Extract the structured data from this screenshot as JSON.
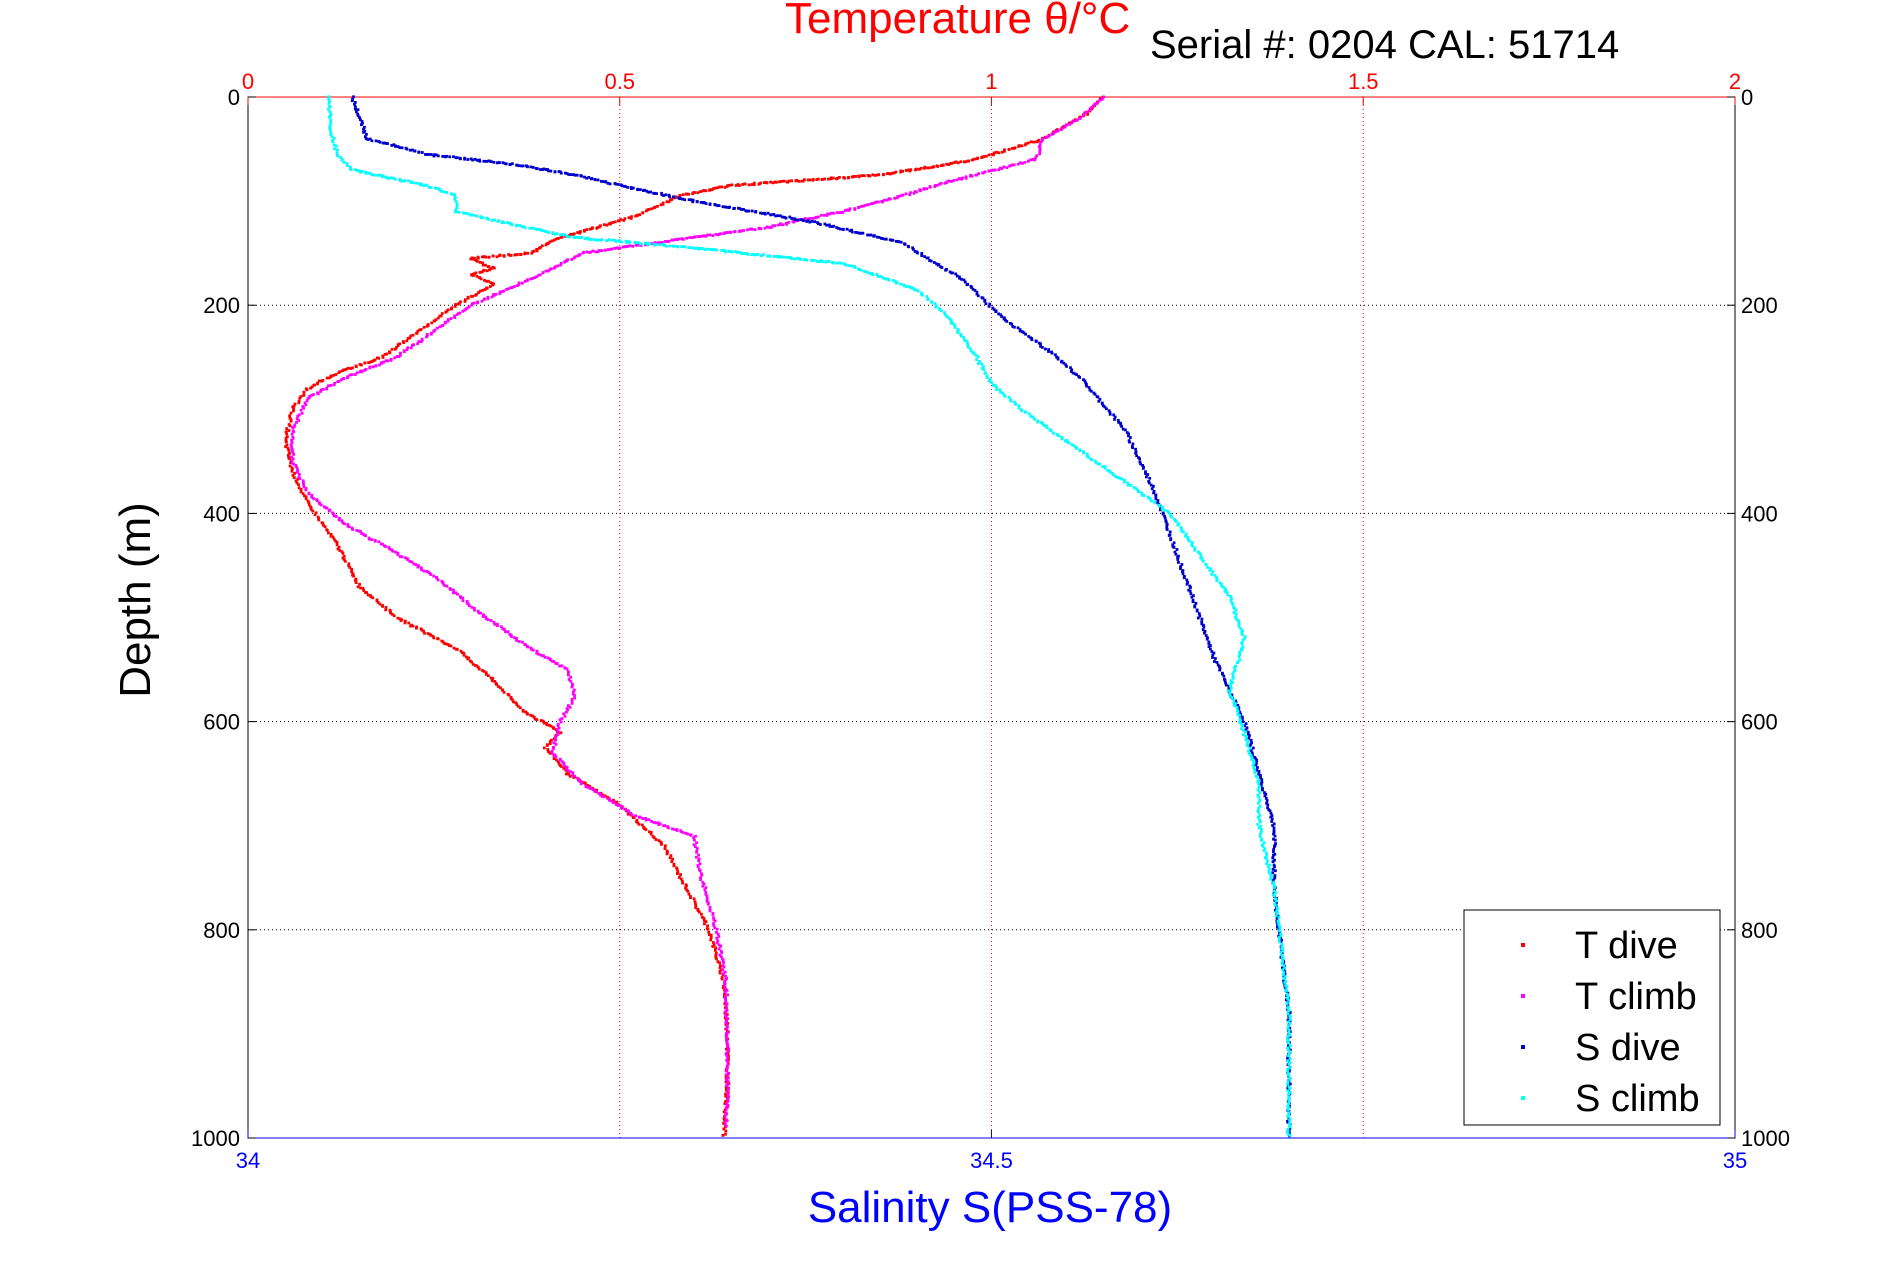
{
  "chart_data": {
    "type": "scatter",
    "title_temperature": "Temperature θ/°C",
    "serial_label": "Serial #: 0204   CAL: 51714",
    "ylabel": "Depth (m)",
    "xlabel_salinity": "Salinity S(PSS-78)",
    "temp_axis": {
      "range": [
        0,
        2
      ],
      "ticks": [
        0,
        0.5,
        1,
        1.5,
        2
      ],
      "tick_labels": [
        "0",
        "0.5",
        "1",
        "1.5",
        "2"
      ]
    },
    "sal_axis": {
      "range": [
        34,
        35
      ],
      "ticks": [
        34,
        34.5,
        35
      ],
      "tick_labels": [
        "34",
        "34.5",
        "35"
      ]
    },
    "depth_axis": {
      "range": [
        0,
        1000
      ],
      "reversed": true,
      "ticks": [
        0,
        200,
        400,
        600,
        800,
        1000
      ],
      "tick_labels": [
        "0",
        "200",
        "400",
        "600",
        "800",
        "1000"
      ]
    },
    "grid": true,
    "legend_position": "bottom-right",
    "series": [
      {
        "name": "T dive",
        "color": "#ff0000",
        "axis": "temperature",
        "points": [
          [
            1.15,
            0
          ],
          [
            1.13,
            15
          ],
          [
            1.07,
            40
          ],
          [
            0.98,
            60
          ],
          [
            0.85,
            75
          ],
          [
            0.65,
            85
          ],
          [
            0.58,
            95
          ],
          [
            0.52,
            115
          ],
          [
            0.42,
            135
          ],
          [
            0.38,
            150
          ],
          [
            0.3,
            155
          ],
          [
            0.33,
            165
          ],
          [
            0.3,
            170
          ],
          [
            0.33,
            180
          ],
          [
            0.28,
            200
          ],
          [
            0.22,
            230
          ],
          [
            0.18,
            250
          ],
          [
            0.12,
            265
          ],
          [
            0.08,
            280
          ],
          [
            0.06,
            300
          ],
          [
            0.05,
            330
          ],
          [
            0.06,
            360
          ],
          [
            0.08,
            390
          ],
          [
            0.1,
            410
          ],
          [
            0.12,
            430
          ],
          [
            0.15,
            470
          ],
          [
            0.2,
            500
          ],
          [
            0.28,
            530
          ],
          [
            0.33,
            560
          ],
          [
            0.37,
            590
          ],
          [
            0.42,
            610
          ],
          [
            0.4,
            625
          ],
          [
            0.43,
            650
          ],
          [
            0.5,
            680
          ],
          [
            0.56,
            720
          ],
          [
            0.59,
            760
          ],
          [
            0.62,
            800
          ],
          [
            0.64,
            850
          ],
          [
            0.645,
            900
          ],
          [
            0.645,
            950
          ],
          [
            0.64,
            1000
          ]
        ]
      },
      {
        "name": "T climb",
        "color": "#ff00ff",
        "axis": "temperature",
        "points": [
          [
            1.15,
            0
          ],
          [
            1.12,
            20
          ],
          [
            1.07,
            40
          ],
          [
            1.06,
            60
          ],
          [
            0.95,
            80
          ],
          [
            0.88,
            95
          ],
          [
            0.8,
            110
          ],
          [
            0.7,
            125
          ],
          [
            0.55,
            140
          ],
          [
            0.45,
            150
          ],
          [
            0.38,
            175
          ],
          [
            0.3,
            200
          ],
          [
            0.25,
            225
          ],
          [
            0.2,
            250
          ],
          [
            0.13,
            270
          ],
          [
            0.08,
            290
          ],
          [
            0.06,
            320
          ],
          [
            0.06,
            350
          ],
          [
            0.08,
            380
          ],
          [
            0.13,
            410
          ],
          [
            0.18,
            430
          ],
          [
            0.25,
            460
          ],
          [
            0.32,
            500
          ],
          [
            0.38,
            530
          ],
          [
            0.43,
            550
          ],
          [
            0.44,
            575
          ],
          [
            0.42,
            600
          ],
          [
            0.41,
            630
          ],
          [
            0.45,
            660
          ],
          [
            0.52,
            690
          ],
          [
            0.6,
            710
          ],
          [
            0.61,
            750
          ],
          [
            0.63,
            800
          ],
          [
            0.643,
            850
          ],
          [
            0.645,
            900
          ],
          [
            0.645,
            950
          ],
          [
            0.643,
            990
          ]
        ]
      },
      {
        "name": "S dive",
        "color": "#0000cc",
        "axis": "salinity",
        "points": [
          [
            34.07,
            0
          ],
          [
            34.075,
            20
          ],
          [
            34.08,
            40
          ],
          [
            34.12,
            55
          ],
          [
            34.18,
            65
          ],
          [
            34.22,
            75
          ],
          [
            34.25,
            85
          ],
          [
            34.3,
            100
          ],
          [
            34.38,
            120
          ],
          [
            34.44,
            140
          ],
          [
            34.48,
            175
          ],
          [
            34.51,
            215
          ],
          [
            34.54,
            245
          ],
          [
            34.56,
            270
          ],
          [
            34.59,
            320
          ],
          [
            34.6,
            350
          ],
          [
            34.61,
            380
          ],
          [
            34.62,
            420
          ],
          [
            34.63,
            460
          ],
          [
            34.64,
            500
          ],
          [
            34.65,
            540
          ],
          [
            34.66,
            570
          ],
          [
            34.67,
            600
          ],
          [
            34.68,
            650
          ],
          [
            34.69,
            700
          ],
          [
            34.69,
            760
          ],
          [
            34.695,
            820
          ],
          [
            34.7,
            880
          ],
          [
            34.7,
            940
          ],
          [
            34.7,
            1000
          ]
        ]
      },
      {
        "name": "S climb",
        "color": "#00ffff",
        "axis": "salinity",
        "points": [
          [
            34.055,
            0
          ],
          [
            34.055,
            30
          ],
          [
            34.06,
            55
          ],
          [
            34.07,
            70
          ],
          [
            34.12,
            85
          ],
          [
            34.14,
            95
          ],
          [
            34.14,
            110
          ],
          [
            34.17,
            120
          ],
          [
            34.22,
            135
          ],
          [
            34.3,
            145
          ],
          [
            34.4,
            160
          ],
          [
            34.45,
            185
          ],
          [
            34.47,
            210
          ],
          [
            34.48,
            230
          ],
          [
            34.49,
            250
          ],
          [
            34.5,
            275
          ],
          [
            34.52,
            300
          ],
          [
            34.56,
            340
          ],
          [
            34.59,
            370
          ],
          [
            34.62,
            400
          ],
          [
            34.64,
            440
          ],
          [
            34.66,
            480
          ],
          [
            34.67,
            520
          ],
          [
            34.66,
            570
          ],
          [
            34.67,
            610
          ],
          [
            34.68,
            660
          ],
          [
            34.68,
            700
          ],
          [
            34.69,
            760
          ],
          [
            34.695,
            820
          ],
          [
            34.7,
            880
          ],
          [
            34.7,
            940
          ],
          [
            34.7,
            1000
          ]
        ]
      }
    ]
  }
}
